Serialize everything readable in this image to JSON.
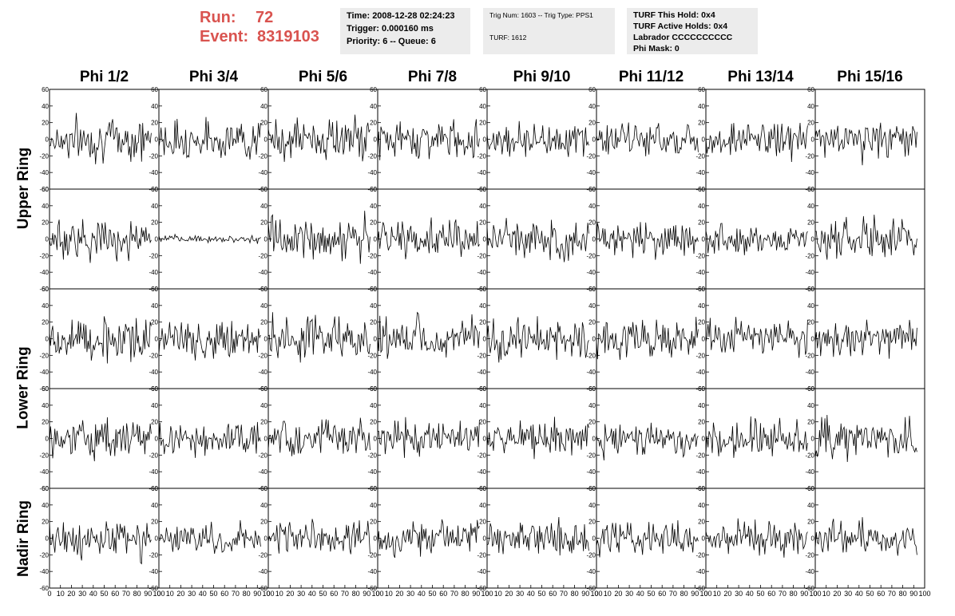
{
  "header": {
    "run_label": "Run:",
    "run_value": "72",
    "event_label": "Event:",
    "event_value": "8319103",
    "time": "Time: 2008-12-28 02:24:23",
    "trigger": "Trigger: 0.000160 ms",
    "priority": "Priority: 6 -- Queue: 6",
    "trig_num": "Trig Num: 1603 -- Trig Type: PPS1",
    "turf": "TURF: 1612",
    "turf_this_hold": "TURF This Hold: 0x4",
    "turf_active_holds": "TURF Active Holds: 0x4",
    "labrador": "Labrador CCCCCCCCCC",
    "phi_mask": "Phi Mask: 0"
  },
  "columns": [
    "Phi 1/2",
    "Phi 3/4",
    "Phi 5/6",
    "Phi 7/8",
    "Phi 9/10",
    "Phi 11/12",
    "Phi 13/14",
    "Phi 15/16"
  ],
  "rings": [
    {
      "label": "Upper Ring",
      "rows": [
        0,
        1
      ]
    },
    {
      "label": "Lower Ring",
      "rows": [
        2,
        3
      ]
    },
    {
      "label": "Nadir Ring",
      "rows": [
        4
      ]
    }
  ],
  "chart_data": {
    "type": "line",
    "description": "8 x 5 grid of waveform panels (noise traces)",
    "x_range": [
      0,
      100
    ],
    "y_range": [
      -60,
      60
    ],
    "y_ticks": [
      -60,
      -40,
      -20,
      0,
      20,
      40,
      60
    ],
    "x_ticks": [
      0,
      10,
      20,
      30,
      40,
      50,
      60,
      70,
      80,
      90,
      100
    ],
    "samples_per_trace": 96,
    "trace_x_end": 93,
    "amplitudes": [
      [
        18,
        16,
        18,
        15,
        14,
        14,
        15,
        17
      ],
      [
        17,
        3,
        17,
        15,
        17,
        15,
        15,
        16
      ],
      [
        18,
        17,
        19,
        18,
        17,
        16,
        15,
        14
      ],
      [
        16,
        15,
        17,
        16,
        16,
        14,
        15,
        17
      ],
      [
        15,
        14,
        14,
        16,
        14,
        14,
        14,
        14
      ]
    ]
  }
}
